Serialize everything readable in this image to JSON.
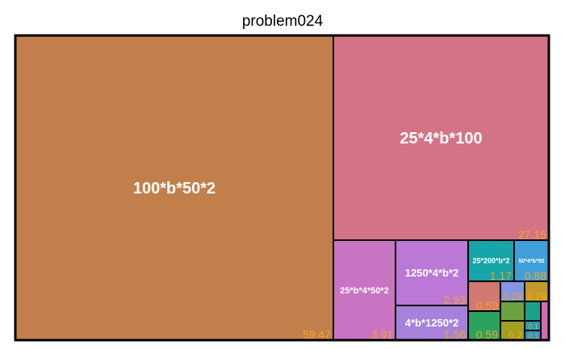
{
  "chart_data": {
    "type": "treemap",
    "title": "problem024",
    "tiles": [
      {
        "label": "100*b*50*2",
        "value": 59.47,
        "value_text": "59.47",
        "color": "#c27f4c"
      },
      {
        "label": "25*4*b*100",
        "value": 27.15,
        "value_text": "27.15",
        "color": "#d47386"
      },
      {
        "label": "25*b*4*50*2",
        "value": 3.91,
        "value_text": "3.91",
        "color": "#c974c2"
      },
      {
        "label": "1250*4*b*2",
        "value": 2.93,
        "value_text": "2.93",
        "color": "#bb78d6"
      },
      {
        "label": "4*b*1250*2",
        "value": 1.56,
        "value_text": "1.56",
        "color": "#a682db"
      },
      {
        "label": "25*200*b*2",
        "value": 1.17,
        "value_text": "1.17",
        "color": "#16a5a8"
      },
      {
        "label": "50*4*b*50",
        "value": 0.88,
        "value_text": "0.88",
        "color": "#3f9fdb"
      },
      {
        "label": "",
        "value": 0.59,
        "value_text": "0.59",
        "color": "#d07871"
      },
      {
        "label": "",
        "value": 0.59,
        "value_text": "0.59",
        "color": "#2aa35f"
      },
      {
        "label": "",
        "value": 0.29,
        "value_text": "0.29",
        "color": "#8596e4"
      },
      {
        "label": "",
        "value": 0.29,
        "value_text": "0.29",
        "color": "#c39a2a"
      },
      {
        "label": "",
        "value": 0.2,
        "value_text": "",
        "color": "#6aa240"
      },
      {
        "label": "",
        "value": 0.2,
        "value_text": "0.2",
        "color": "#a3a01e"
      },
      {
        "label": "",
        "value": 0.1,
        "value_text": "",
        "color": "#1aa38a"
      },
      {
        "label": "",
        "value": 0.1,
        "value_text": "0.1",
        "color": "#1f9eb4"
      },
      {
        "label": "",
        "value": 0.1,
        "value_text": "0.1",
        "color": "#2b98c6"
      },
      {
        "label": "",
        "value": 0.1,
        "value_text": "",
        "color": "#d46ab4"
      }
    ],
    "value_label_color": "#f5a623",
    "tile_label_color": "#ffffff",
    "border_color": "#000000"
  }
}
